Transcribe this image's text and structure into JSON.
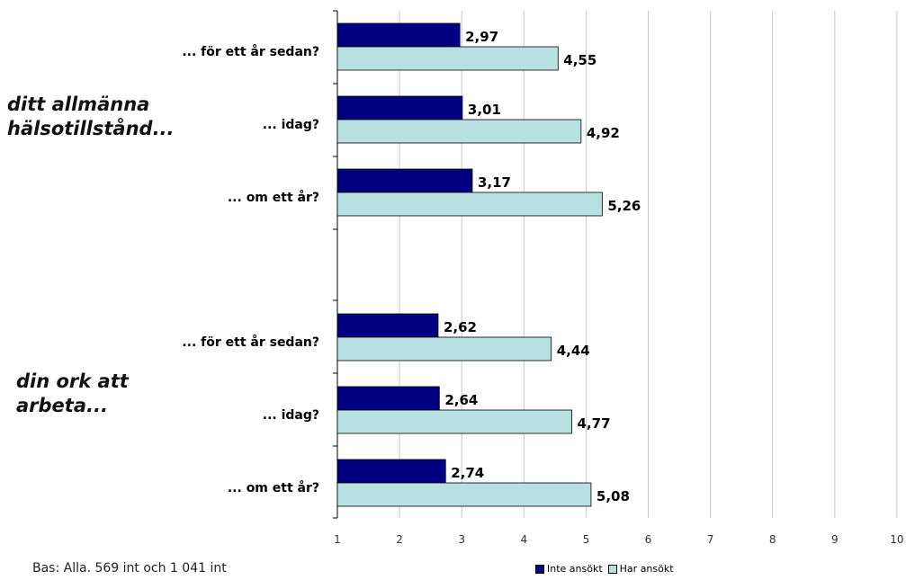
{
  "chart_data": {
    "type": "bar",
    "orientation": "horizontal",
    "xlim": [
      1,
      10
    ],
    "xticks": [
      "1",
      "2",
      "3",
      "4",
      "5",
      "6",
      "7",
      "8",
      "9",
      "10"
    ],
    "grid": true,
    "legend_position": "bottom",
    "groups": [
      {
        "title": "ditt allmänna hälsotillstånd...",
        "title_lines": [
          "ditt allmänna",
          "hälsotillstånd..."
        ],
        "categories": [
          "... för ett år sedan?",
          "... idag?",
          "... om ett år?"
        ],
        "values_labels_inte": [
          "2,97",
          "3,01",
          "3,17"
        ],
        "values_labels_har": [
          "4,55",
          "4,92",
          "5,26"
        ]
      },
      {
        "title": "din ork att arbeta...",
        "title_lines": [
          "din ork att",
          "arbeta..."
        ],
        "categories": [
          "... för ett år sedan?",
          "... idag?",
          "... om ett år?"
        ],
        "values_labels_inte": [
          "2,62",
          "2,64",
          "2,74"
        ],
        "values_labels_har": [
          "4,44",
          "4,77",
          "5,08"
        ]
      }
    ],
    "series": [
      {
        "name": "Inte ansökt",
        "color": "#000080",
        "values": [
          2.97,
          3.01,
          3.17,
          2.62,
          2.64,
          2.74
        ]
      },
      {
        "name": "Har ansökt",
        "color": "#b7e0e0",
        "values": [
          4.55,
          4.92,
          5.26,
          4.44,
          4.77,
          5.08
        ]
      }
    ]
  },
  "note": "Bas: Alla. 569 int och 1 041 int",
  "legend": {
    "inte": "Inte ansökt",
    "har": "Har ansökt"
  }
}
